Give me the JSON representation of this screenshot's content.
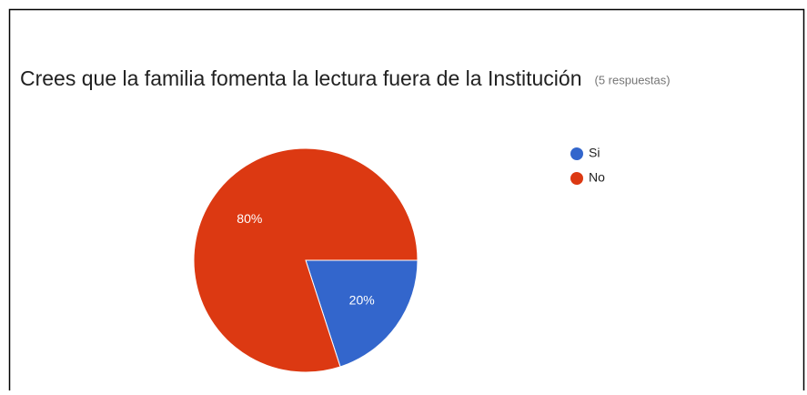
{
  "chart_data": {
    "type": "pie",
    "title": "Crees que la familia fomenta la lectura fuera de la Institución",
    "subtitle": "(5 respuestas)",
    "categories": [
      "Si",
      "No"
    ],
    "values": [
      20,
      80
    ],
    "value_labels": [
      "20%",
      "80%"
    ],
    "colors": [
      "#3366cc",
      "#dc3912"
    ],
    "legend": "right"
  }
}
